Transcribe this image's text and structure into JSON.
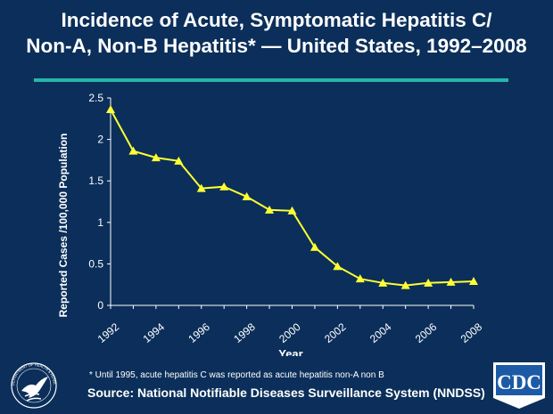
{
  "header": {
    "title_line1": "Incidence of Acute, Symptomatic Hepatitis C/",
    "title_line2": "Non-A, Non-B Hepatitis* — United States, 1992–2008"
  },
  "footer": {
    "footnote": "* Until 1995, acute hepatitis C was reported as acute hepatitis non-A non B",
    "source": "Source: National Notifiable Diseases Surveillance System (NNDSS)"
  },
  "logos": {
    "hhs_text": "DEPARTMENT OF HEALTH & HUMAN SERVICES",
    "cdc_text": "CDC"
  },
  "colors": {
    "background": "#0b2f5a",
    "accent_rule": "#27b6a8",
    "series": "#ffff33"
  },
  "chart_data": {
    "type": "line",
    "xlabel": "Year",
    "ylabel": "Reported Cases /100,000 Population",
    "ylim": [
      0,
      2.5
    ],
    "yticks": [
      0,
      0.5,
      1,
      1.5,
      2,
      2.5
    ],
    "ytick_labels": [
      "0",
      "0.5",
      "1",
      "1.5",
      "2",
      "2.5"
    ],
    "xticks": [
      1992,
      1994,
      1996,
      1998,
      2000,
      2002,
      2004,
      2006,
      2008
    ],
    "xtick_labels": [
      "1992",
      "1994",
      "1996",
      "1998",
      "2000",
      "2002",
      "2004",
      "2006",
      "2008"
    ],
    "grid": false,
    "legend": false,
    "x": [
      1992,
      1993,
      1994,
      1995,
      1996,
      1997,
      1998,
      1999,
      2000,
      2001,
      2002,
      2003,
      2004,
      2005,
      2006,
      2007,
      2008
    ],
    "series": [
      {
        "values": [
          2.36,
          1.86,
          1.78,
          1.74,
          1.41,
          1.43,
          1.31,
          1.15,
          1.14,
          0.7,
          0.47,
          0.32,
          0.27,
          0.24,
          0.27,
          0.28,
          0.29
        ]
      }
    ]
  }
}
